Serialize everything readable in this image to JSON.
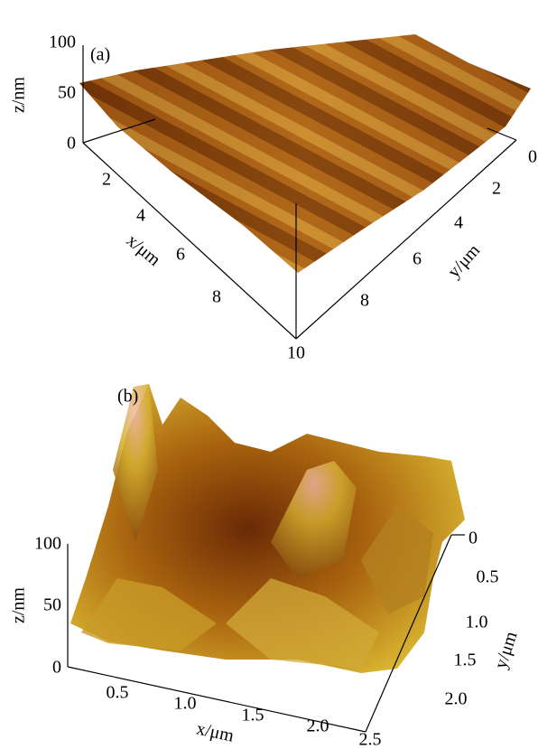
{
  "panels": [
    {
      "label": "(a)",
      "z_label": "z/nm",
      "z_ticks": [
        "100",
        "50",
        "0"
      ],
      "x_label": "x/μm",
      "x_ticks": [
        "2",
        "4",
        "6",
        "8",
        "10"
      ],
      "y_label": "y/μm",
      "y_ticks": [
        "0",
        "2",
        "4",
        "6",
        "8"
      ]
    },
    {
      "label": "(b)",
      "z_label": "z/nm",
      "z_ticks": [
        "100",
        "50",
        "0"
      ],
      "x_label": "x/μm",
      "x_ticks": [
        "0.5",
        "1.0",
        "1.5",
        "2.0",
        "2.5"
      ],
      "y_label": "y/μm",
      "y_ticks": [
        "0",
        "0.5",
        "1.0",
        "1.5",
        "2.0"
      ]
    }
  ]
}
